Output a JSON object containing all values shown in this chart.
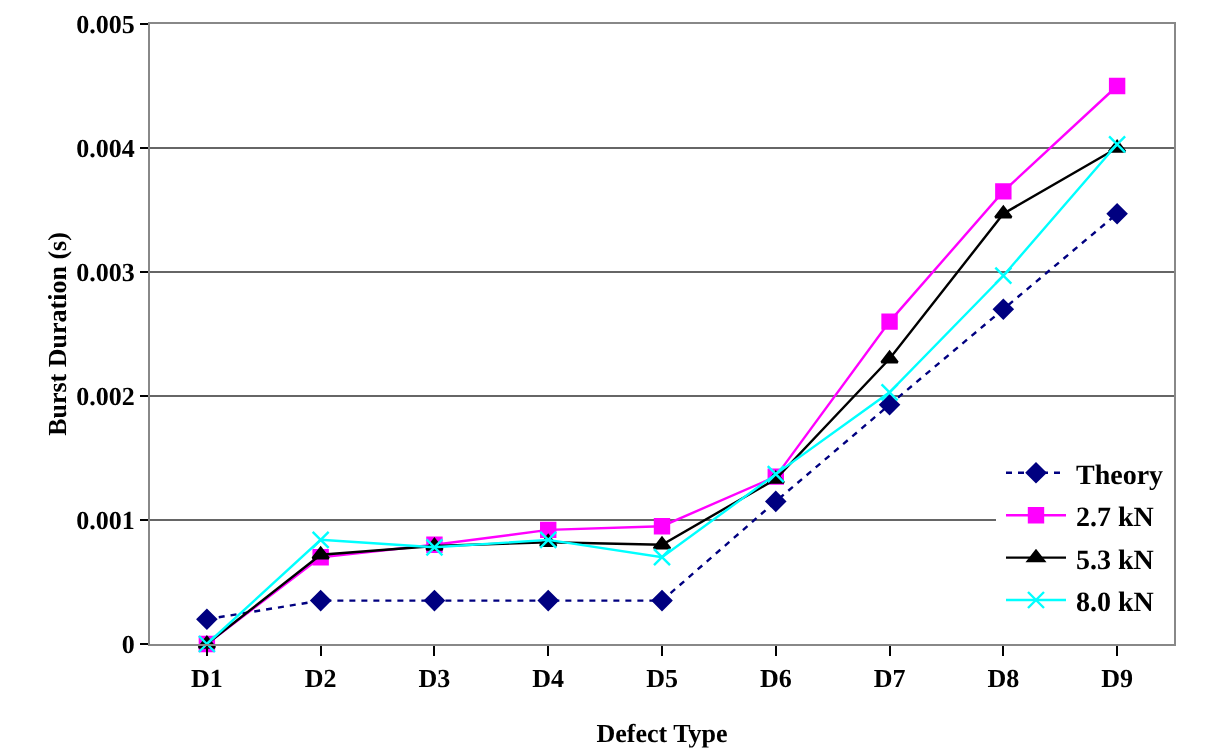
{
  "chart_data": {
    "type": "line",
    "xlabel": "Defect Type",
    "ylabel": "Burst Duration (s)",
    "categories": [
      "D1",
      "D2",
      "D3",
      "D4",
      "D5",
      "D6",
      "D7",
      "D8",
      "D9"
    ],
    "series": [
      {
        "name": "Theory",
        "color": "#000080",
        "marker": "diamond",
        "line_style": "dotted",
        "values": [
          0.0002,
          0.00035,
          0.00035,
          0.00035,
          0.00035,
          0.00115,
          0.00193,
          0.0027,
          0.00347
        ]
      },
      {
        "name": "2.7 kN",
        "color": "#ff00ff",
        "marker": "square",
        "line_style": "solid",
        "values": [
          0,
          0.0007,
          0.0008,
          0.00092,
          0.00095,
          0.00135,
          0.0026,
          0.00365,
          0.0045
        ]
      },
      {
        "name": "5.3 kN",
        "color": "#000000",
        "marker": "triangle",
        "line_style": "solid",
        "values": [
          0,
          0.00072,
          0.00079,
          0.00082,
          0.0008,
          0.00133,
          0.0023,
          0.00347,
          0.004
        ]
      },
      {
        "name": "8.0 kN",
        "color": "#00ffff",
        "marker": "cross",
        "line_style": "solid",
        "values": [
          0,
          0.00084,
          0.00078,
          0.00084,
          0.0007,
          0.00137,
          0.00203,
          0.00297,
          0.00403
        ]
      }
    ],
    "ylim": [
      0,
      0.005
    ],
    "yticks": [
      0,
      0.001,
      0.002,
      0.003,
      0.004,
      0.005
    ],
    "grid": "y",
    "legend": "bottom right"
  }
}
